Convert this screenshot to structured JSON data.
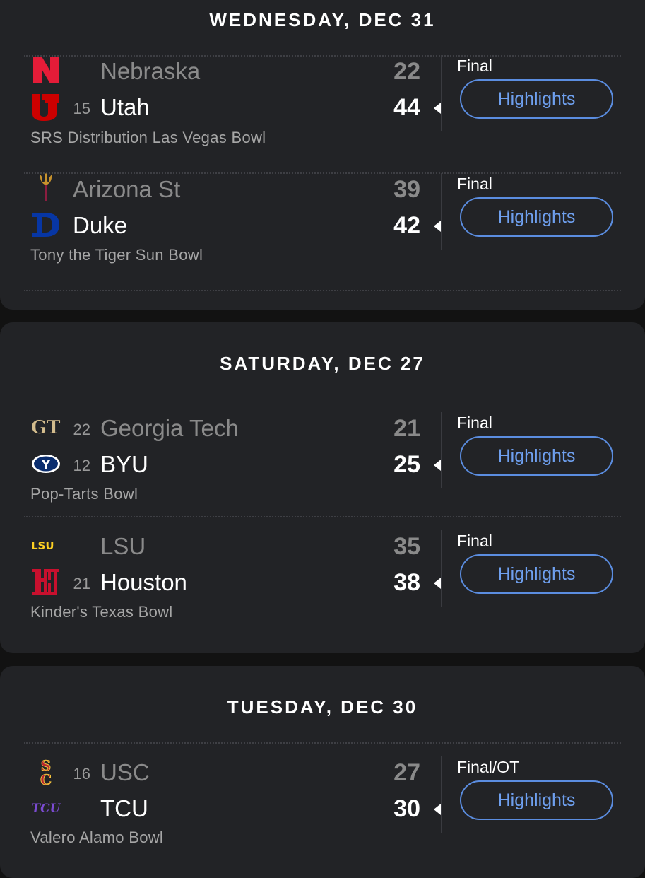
{
  "sections": [
    {
      "date": "WEDNESDAY, DEC 31",
      "games": [
        {
          "teams": [
            {
              "rank": "",
              "name": "Nebraska",
              "score": "22",
              "winner": false,
              "logo": "nebraska-logo"
            },
            {
              "rank": "15",
              "name": "Utah",
              "score": "44",
              "winner": true,
              "logo": "utah-logo"
            }
          ],
          "status": "Final",
          "highlights_label": "Highlights",
          "bowl": "SRS Distribution Las Vegas Bowl"
        },
        {
          "teams": [
            {
              "rank": "",
              "name": "Arizona St",
              "score": "39",
              "winner": false,
              "logo": "arizona-st-logo"
            },
            {
              "rank": "",
              "name": "Duke",
              "score": "42",
              "winner": true,
              "logo": "duke-logo"
            }
          ],
          "status": "Final",
          "highlights_label": "Highlights",
          "bowl": "Tony the Tiger Sun Bowl"
        }
      ]
    },
    {
      "date": "SATURDAY, DEC 27",
      "games": [
        {
          "teams": [
            {
              "rank": "22",
              "name": "Georgia Tech",
              "score": "21",
              "winner": false,
              "logo": "georgia-tech-logo"
            },
            {
              "rank": "12",
              "name": "BYU",
              "score": "25",
              "winner": true,
              "logo": "byu-logo"
            }
          ],
          "status": "Final",
          "highlights_label": "Highlights",
          "bowl": "Pop-Tarts Bowl"
        },
        {
          "teams": [
            {
              "rank": "",
              "name": "LSU",
              "score": "35",
              "winner": false,
              "logo": "lsu-logo"
            },
            {
              "rank": "21",
              "name": "Houston",
              "score": "38",
              "winner": true,
              "logo": "houston-logo"
            }
          ],
          "status": "Final",
          "highlights_label": "Highlights",
          "bowl": "Kinder's Texas Bowl"
        }
      ]
    },
    {
      "date": "TUESDAY, DEC 30",
      "games": [
        {
          "teams": [
            {
              "rank": "16",
              "name": "USC",
              "score": "27",
              "winner": false,
              "logo": "usc-logo"
            },
            {
              "rank": "",
              "name": "TCU",
              "score": "30",
              "winner": true,
              "logo": "tcu-logo"
            }
          ],
          "status": "Final/OT",
          "highlights_label": "Highlights",
          "bowl": "Valero Alamo Bowl"
        }
      ]
    }
  ],
  "colors": {
    "background": "#121212",
    "card": "#222326",
    "accent": "#5b8de0",
    "loser_text": "#8a8a8a"
  }
}
